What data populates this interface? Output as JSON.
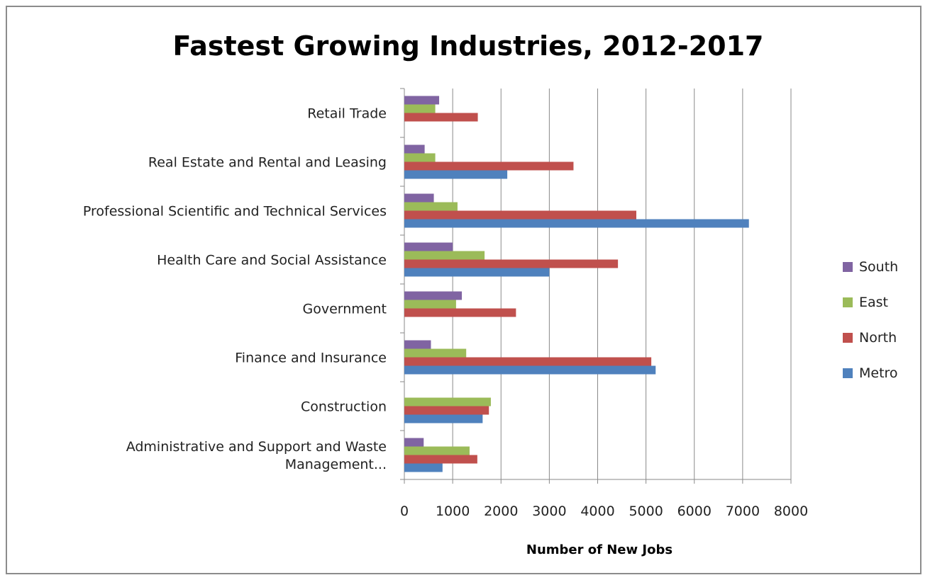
{
  "chart_data": {
    "type": "bar",
    "orientation": "horizontal",
    "title": "Fastest Growing Industries, 2012-2017",
    "xlabel": "Number of New Jobs",
    "ylabel": "",
    "xlim": [
      0,
      8000
    ],
    "xticks": [
      "0",
      "1000",
      "2000",
      "3000",
      "4000",
      "5000",
      "6000",
      "7000",
      "8000"
    ],
    "grid": "vertical",
    "legend_position": "right",
    "categories": [
      "Retail Trade",
      "Real Estate and Rental and Leasing",
      "Professional Scientific and Technical Services",
      "Health Care and Social Assistance",
      "Government",
      "Finance and Insurance",
      "Construction",
      "Administrative and Support and Waste Management..."
    ],
    "category_lines": [
      [
        "Retail Trade"
      ],
      [
        "Real Estate and Rental and Leasing"
      ],
      [
        "Professional Scientific and Technical Services"
      ],
      [
        "Health Care and Social Assistance"
      ],
      [
        "Government"
      ],
      [
        "Finance and Insurance"
      ],
      [
        "Construction"
      ],
      [
        "Administrative and Support and Waste",
        "Management..."
      ]
    ],
    "series": [
      {
        "name": "South",
        "color": "#8064a2",
        "values": [
          720,
          420,
          610,
          1000,
          1190,
          550,
          0,
          400
        ]
      },
      {
        "name": "East",
        "color": "#9bbb59",
        "values": [
          640,
          640,
          1100,
          1660,
          1070,
          1280,
          1790,
          1350
        ]
      },
      {
        "name": "North",
        "color": "#c0504d",
        "values": [
          1520,
          3500,
          4800,
          4420,
          2310,
          5110,
          1750,
          1510
        ]
      },
      {
        "name": "Metro",
        "color": "#4f81bd",
        "values": [
          0,
          2130,
          7130,
          3000,
          0,
          5200,
          1620,
          790
        ]
      }
    ]
  }
}
